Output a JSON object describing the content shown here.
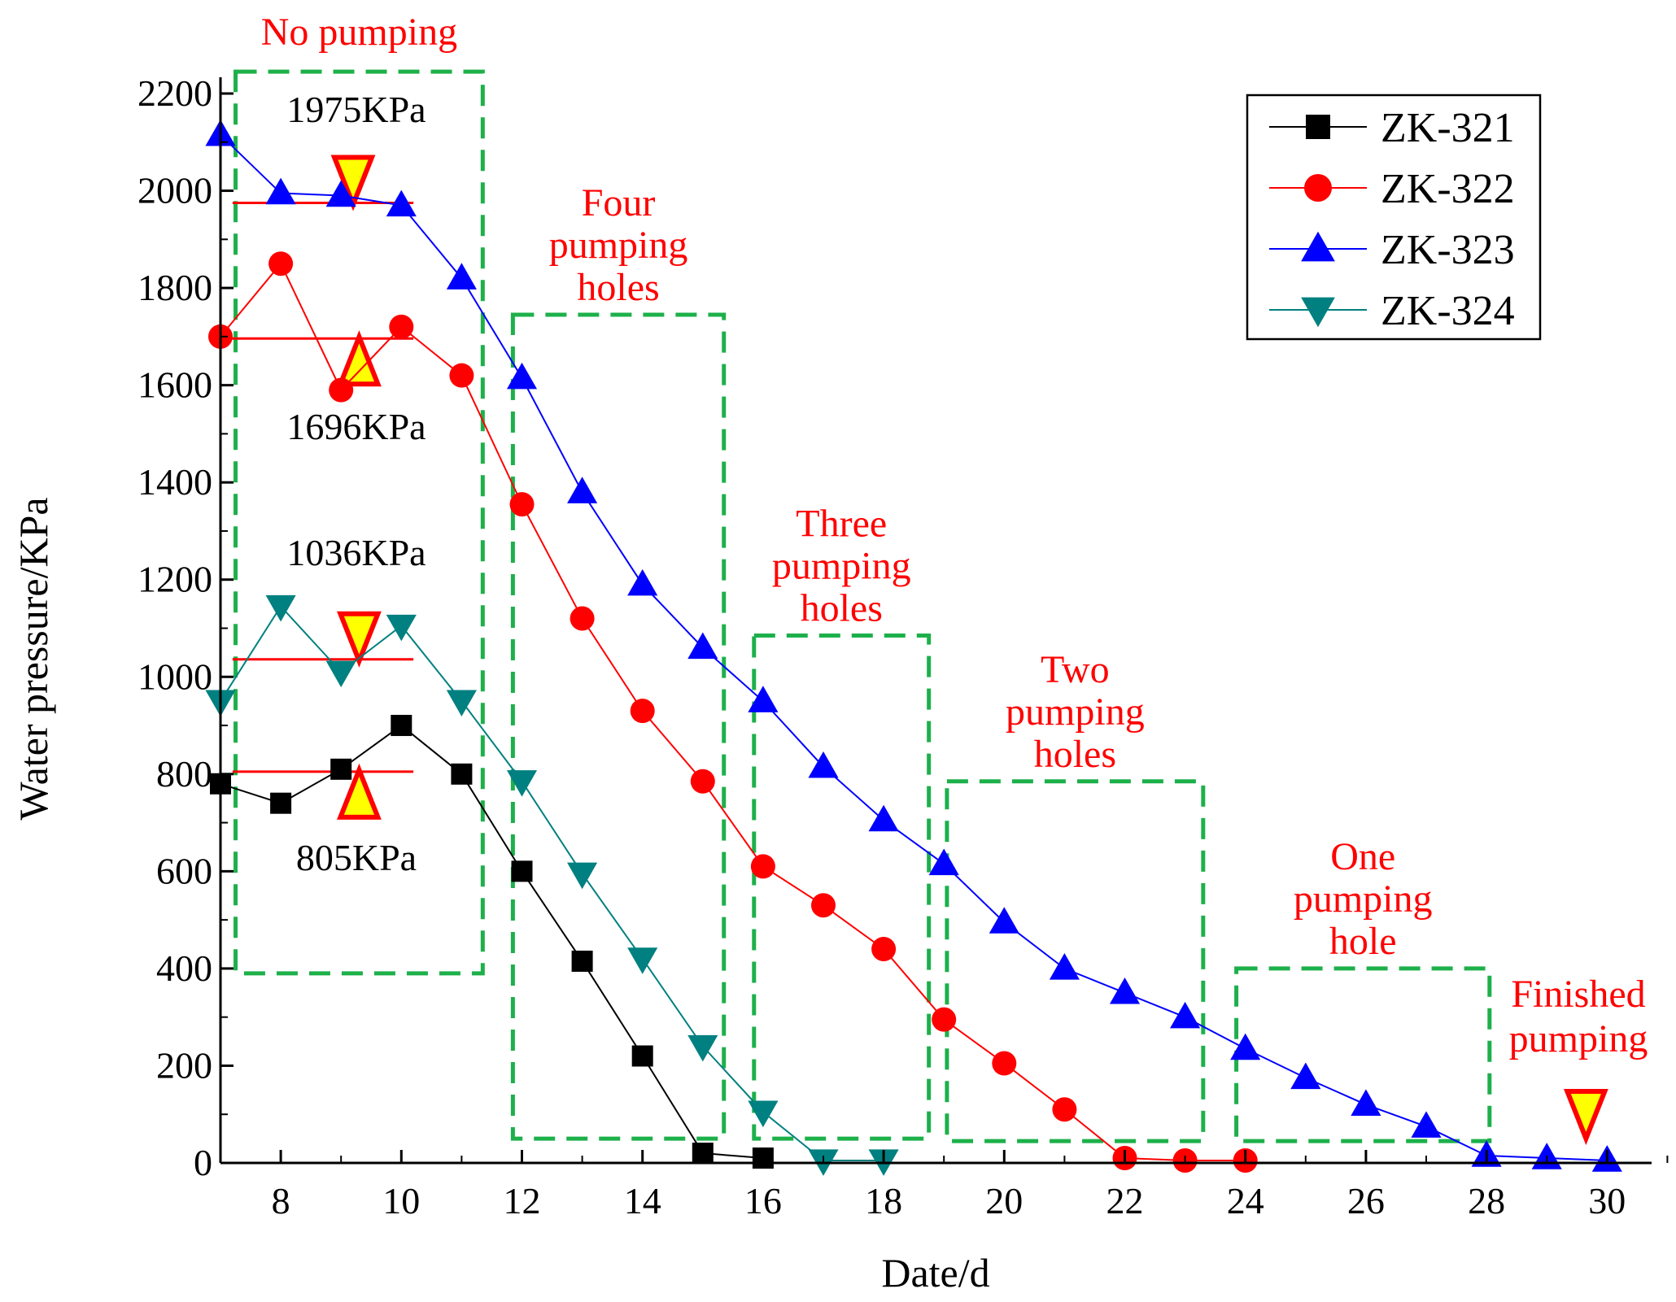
{
  "chart_data": {
    "type": "line",
    "title": "",
    "xlabel": "Date/d",
    "ylabel": "Water pressure/KPa",
    "xlim": [
      7,
      31
    ],
    "ylim": [
      0,
      2200
    ],
    "xticks": [
      8,
      10,
      12,
      14,
      16,
      18,
      20,
      22,
      24,
      26,
      28,
      30
    ],
    "yticks": [
      0,
      200,
      400,
      600,
      800,
      1000,
      1200,
      1400,
      1600,
      1800,
      2000,
      2200
    ],
    "grid": false,
    "legend_position": "top-right",
    "colors": {
      "annotation_red": "#ff0000",
      "box_green": "#1db04a",
      "marker_yellow": "#ffff00"
    },
    "series": [
      {
        "name": "ZK-321",
        "color": "#000000",
        "marker": "square",
        "x": [
          7,
          8,
          9,
          10,
          11,
          12,
          13,
          14,
          15,
          16
        ],
        "values": [
          780,
          740,
          810,
          900,
          800,
          600,
          415,
          220,
          20,
          10
        ]
      },
      {
        "name": "ZK-322",
        "color": "#ff0000",
        "marker": "circle",
        "x": [
          7,
          8,
          9,
          10,
          11,
          12,
          13,
          14,
          15,
          16,
          17,
          18,
          19,
          20,
          21,
          22,
          23,
          24
        ],
        "values": [
          1700,
          1850,
          1590,
          1720,
          1620,
          1355,
          1120,
          930,
          785,
          610,
          530,
          440,
          295,
          205,
          110,
          10,
          5,
          5
        ]
      },
      {
        "name": "ZK-323",
        "color": "#0000ff",
        "marker": "triangle-up",
        "x": [
          7,
          8,
          9,
          10,
          11,
          12,
          13,
          14,
          15,
          16,
          17,
          18,
          19,
          20,
          21,
          22,
          23,
          24,
          25,
          26,
          27,
          28,
          29,
          30
        ],
        "values": [
          2115,
          1995,
          1990,
          1970,
          1820,
          1615,
          1380,
          1190,
          1060,
          950,
          815,
          705,
          615,
          495,
          400,
          350,
          300,
          235,
          175,
          120,
          75,
          15,
          10,
          5
        ]
      },
      {
        "name": "ZK-324",
        "color": "#008080",
        "marker": "triangle-down",
        "x": [
          7,
          8,
          9,
          10,
          11,
          12,
          13,
          14,
          15,
          16,
          17,
          18
        ],
        "values": [
          950,
          1145,
          1010,
          1105,
          950,
          785,
          595,
          420,
          240,
          105,
          5,
          5
        ]
      }
    ],
    "reference_lines": [
      {
        "y": 1975,
        "x_from": 7.2,
        "x_to": 10.2,
        "label": "1975KPa",
        "arrow": "down",
        "arrow_x": 9.2
      },
      {
        "y": 1696,
        "x_from": 7,
        "x_to": 10.2,
        "label": "1696KPa",
        "arrow": "up",
        "arrow_x": 9.3
      },
      {
        "y": 1036,
        "x_from": 7.2,
        "x_to": 10.2,
        "label": "1036KPa",
        "arrow": "down",
        "arrow_x": 9.3
      },
      {
        "y": 805,
        "x_from": 7.2,
        "x_to": 10.2,
        "label": "805KPa",
        "arrow": "up",
        "arrow_x": 9.3
      }
    ],
    "phases": [
      {
        "label": [
          "No pumping"
        ],
        "x_from": 7.25,
        "x_to": 11.35,
        "y_from": 390,
        "y_to": 2245
      },
      {
        "label": [
          "Four",
          "pumping",
          "holes"
        ],
        "x_from": 11.85,
        "x_to": 15.35,
        "y_from": 50,
        "y_to": 1745
      },
      {
        "label": [
          "Three",
          "pumping",
          "holes"
        ],
        "x_from": 15.85,
        "x_to": 18.75,
        "y_from": 50,
        "y_to": 1085
      },
      {
        "label": [
          "Two",
          "pumping",
          "holes"
        ],
        "x_from": 19.05,
        "x_to": 23.3,
        "y_from": 45,
        "y_to": 785
      },
      {
        "label": [
          "One",
          "pumping",
          "hole"
        ],
        "x_from": 23.85,
        "x_to": 28.05,
        "y_from": 45,
        "y_to": 400
      }
    ],
    "end_annotation": {
      "label": [
        "Finished",
        "pumping"
      ],
      "arrow_x": 29.65,
      "arrow": "down"
    }
  }
}
